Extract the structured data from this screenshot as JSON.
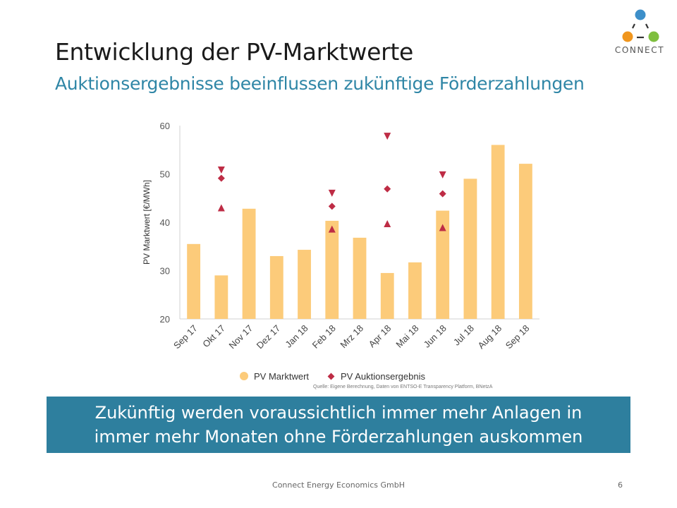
{
  "slide": {
    "title": "Entwicklung der PV-Marktwerte",
    "subtitle": "Auktionsergebnisse beeinflussen zukünftige Förderzahlungen",
    "banner_line1": "Zukünftig werden voraussichtlich immer mehr Anlagen in",
    "banner_line2": "immer mehr Monaten ohne Förderzahlungen auskommen",
    "footer": "Connect Energy Economics GmbH",
    "page_number": "6",
    "source": "Quelle: Eigene Berechnung, Daten von ENTSO-E Transparency Platform, BNetzA"
  },
  "logo": {
    "text": "CONNECT",
    "colors": {
      "top": "#3d8fc9",
      "left": "#f0961e",
      "right": "#7fbf3f"
    }
  },
  "chart_data": {
    "type": "bar",
    "ylabel": "PV Marktwert [€/MWh]",
    "xlabel": "",
    "ylim": [
      20,
      60
    ],
    "yticks": [
      20,
      30,
      40,
      50,
      60
    ],
    "grid": false,
    "legend_position": "bottom",
    "categories": [
      "Sep 17",
      "Okt 17",
      "Nov 17",
      "Dez 17",
      "Jan 18",
      "Feb 18",
      "Mrz 18",
      "Apr 18",
      "Mai 18",
      "Jun 18",
      "Jul 18",
      "Aug 18",
      "Sep 18"
    ],
    "series": [
      {
        "name": "PV Marktwert",
        "kind": "bar",
        "color": "#fccb7a",
        "values": [
          35.5,
          29.0,
          42.8,
          33.0,
          34.3,
          40.3,
          36.8,
          29.5,
          31.7,
          42.4,
          49.0,
          56.0,
          52.1
        ]
      },
      {
        "name": "PV Auktionsergebnis",
        "kind": "marker",
        "color": "#be2c45",
        "points": [
          {
            "category": "Okt 17",
            "max": 50.8,
            "avg": 49.1,
            "min": 43.0
          },
          {
            "category": "Feb 18",
            "max": 46.0,
            "avg": 43.3,
            "min": 38.6
          },
          {
            "category": "Apr 18",
            "max": 57.8,
            "avg": 46.9,
            "min": 39.7
          },
          {
            "category": "Jun 18",
            "max": 49.8,
            "avg": 45.9,
            "min": 38.9
          }
        ]
      }
    ]
  }
}
